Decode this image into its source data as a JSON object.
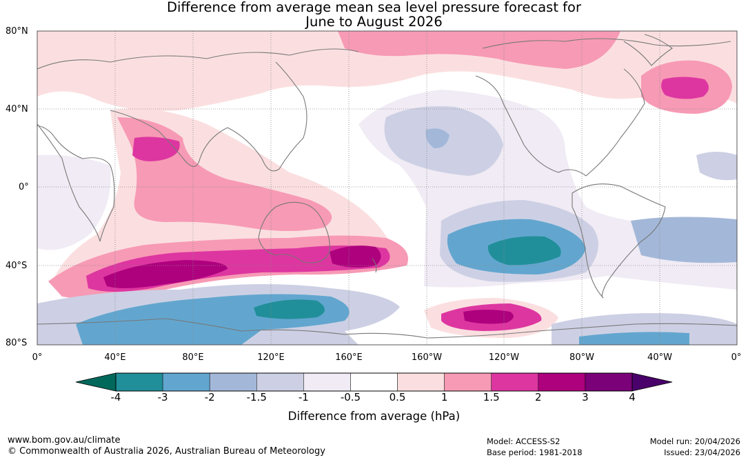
{
  "title": {
    "line1": "Difference from average mean sea level pressure forecast for",
    "line2": "June to August 2026"
  },
  "lat_labels": [
    "80°N",
    "40°N",
    "0°",
    "40°S",
    "80°S"
  ],
  "lon_labels": [
    "0°",
    "40°E",
    "80°E",
    "120°E",
    "160°E",
    "160°W",
    "120°W",
    "80°W",
    "40°W",
    "0°"
  ],
  "colorbar": {
    "title": "Difference from average (hPa)",
    "ticks": [
      "-4",
      "-3",
      "-2",
      "-1.5",
      "-1",
      "-0.5",
      "0.5",
      "1",
      "1.5",
      "2",
      "3",
      "4"
    ],
    "colors": {
      "below_min": "#00695c",
      "bins": [
        "#218f99",
        "#62a6cf",
        "#a3b8d9",
        "#cdd0e4",
        "#f0ebf4",
        "#ffffff",
        "#fbdfe0",
        "#f79ab5",
        "#dd36a0",
        "#ae017e",
        "#7a0177"
      ],
      "above_max": "#49006a"
    }
  },
  "footer": {
    "website": "www.bom.gov.au/climate",
    "copyright": "© Commonwealth of Australia 2026, Australian Bureau of Meteorology",
    "model": "Model: ACCESS-S2",
    "base_period": "Base period: 1981-2018",
    "model_run": "Model run: 20/04/2026",
    "issued": "Issued: 23/04/2026"
  }
}
